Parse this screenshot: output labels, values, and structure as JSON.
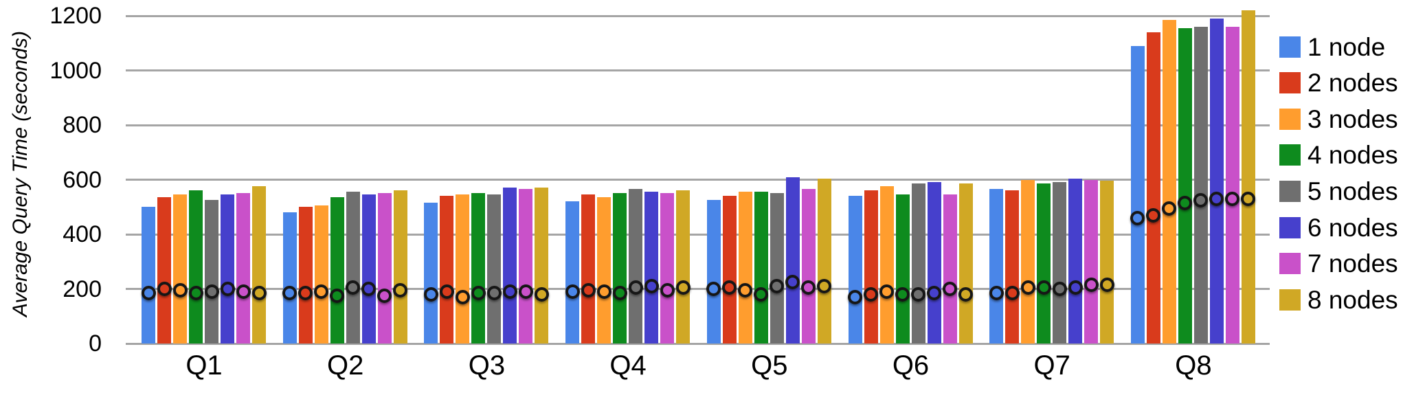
{
  "chart_data": {
    "type": "bar",
    "title": "",
    "ylabel": "Average Query Time (seconds)",
    "xlabel": "",
    "ylim": [
      0,
      1200
    ],
    "yticks": [
      0,
      200,
      400,
      600,
      800,
      1000,
      1200
    ],
    "grid": true,
    "legend_position": "right",
    "gridline_color": "#a5a5a5",
    "marker_color": "#161616",
    "categories": [
      "Q1",
      "Q2",
      "Q3",
      "Q4",
      "Q5",
      "Q6",
      "Q7",
      "Q8"
    ],
    "series": [
      {
        "name": "1 node",
        "color": "#4a86e8",
        "values": [
          500,
          480,
          515,
          520,
          525,
          540,
          565,
          1090
        ],
        "markers": [
          185,
          185,
          180,
          190,
          200,
          170,
          185,
          460
        ]
      },
      {
        "name": "2 nodes",
        "color": "#d93b1c",
        "values": [
          535,
          500,
          540,
          545,
          540,
          560,
          560,
          1140
        ],
        "markers": [
          200,
          185,
          190,
          195,
          205,
          180,
          185,
          470
        ]
      },
      {
        "name": "3 nodes",
        "color": "#ff9d2e",
        "values": [
          545,
          505,
          545,
          535,
          555,
          575,
          600,
          1185
        ],
        "markers": [
          195,
          190,
          170,
          190,
          195,
          190,
          205,
          495
        ]
      },
      {
        "name": "4 nodes",
        "color": "#0e8b1e",
        "values": [
          560,
          535,
          550,
          550,
          555,
          545,
          585,
          1155
        ],
        "markers": [
          185,
          175,
          185,
          185,
          180,
          180,
          205,
          515
        ]
      },
      {
        "name": "5 nodes",
        "color": "#6f6f6f",
        "values": [
          525,
          555,
          545,
          565,
          550,
          585,
          590,
          1160
        ],
        "markers": [
          190,
          205,
          185,
          205,
          210,
          180,
          200,
          525
        ]
      },
      {
        "name": "6 nodes",
        "color": "#4640cc",
        "values": [
          545,
          545,
          570,
          555,
          610,
          590,
          605,
          1190
        ],
        "markers": [
          200,
          200,
          190,
          210,
          225,
          185,
          205,
          530
        ]
      },
      {
        "name": "7 nodes",
        "color": "#c951c9",
        "values": [
          550,
          550,
          565,
          550,
          565,
          545,
          600,
          1160
        ],
        "markers": [
          190,
          175,
          190,
          195,
          205,
          200,
          215,
          530
        ]
      },
      {
        "name": "8 nodes",
        "color": "#d0a825",
        "values": [
          575,
          560,
          570,
          560,
          605,
          585,
          595,
          1220
        ],
        "markers": [
          185,
          195,
          180,
          205,
          210,
          180,
          215,
          530
        ]
      }
    ]
  }
}
